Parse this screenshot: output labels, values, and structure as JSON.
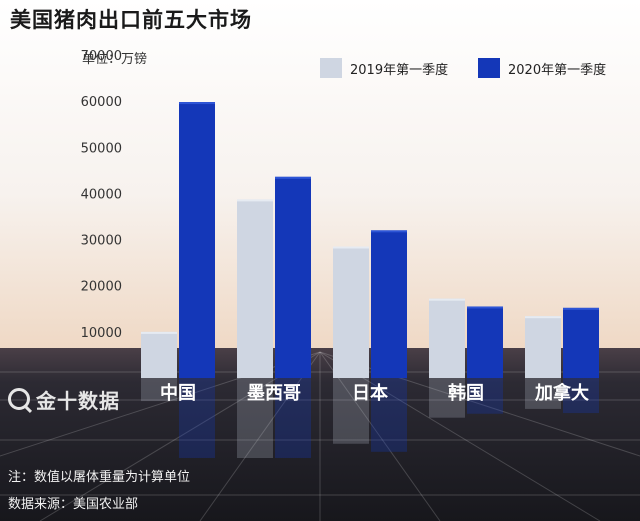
{
  "header": {
    "title": "美国猪肉出口前五大市场",
    "unit": "单位：万镑"
  },
  "colors": {
    "series_2019": "#cfd6e2",
    "series_2020": "#1437b8",
    "sky_top": "#ffffff",
    "sky_bottom": "#f0ddc8",
    "floor": "#2a2a33"
  },
  "logo": {
    "icon": "magnifier-q-icon",
    "text": "金十数据"
  },
  "footer": {
    "note": "注：数值以屠体重量为计算单位",
    "source": "数据来源：美国农业部"
  },
  "chart_data": {
    "type": "bar",
    "title": "美国猪肉出口前五大市场",
    "ylabel": "单位：万镑",
    "xlabel": "",
    "categories": [
      "中国",
      "墨西哥",
      "日本",
      "韩国",
      "加拿大"
    ],
    "series": [
      {
        "name": "2019年第一季度",
        "values": [
          10000,
          38700,
          28500,
          17200,
          13400
        ]
      },
      {
        "name": "2020年第一季度",
        "values": [
          59800,
          43600,
          32000,
          15500,
          15200
        ]
      }
    ],
    "ylim": [
      0,
      70000
    ],
    "yticks": [
      10000,
      20000,
      30000,
      40000,
      50000,
      60000,
      70000
    ],
    "grid": false,
    "legend_position": "top-right"
  }
}
